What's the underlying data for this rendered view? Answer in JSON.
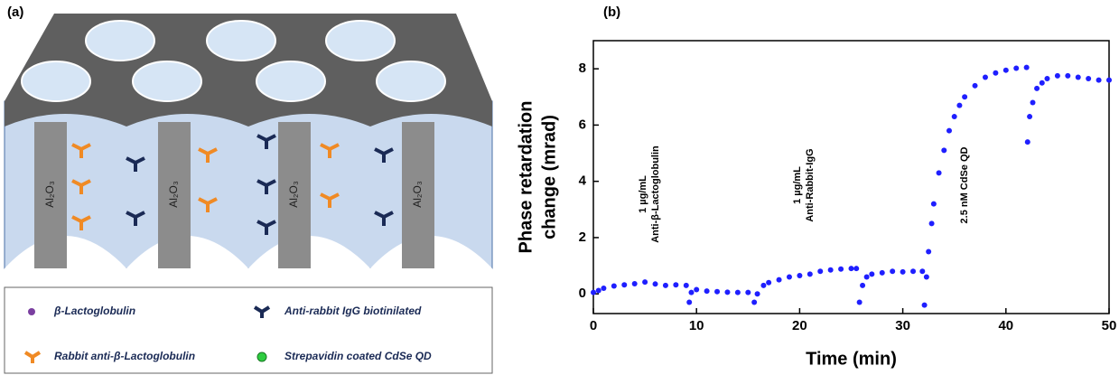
{
  "diagram": {
    "panel_label": "(a)",
    "pore_labels": [
      "Al₂O₃",
      "Al₂O₃",
      "Al₂O₃",
      "Al₂O₃"
    ],
    "legend": [
      "β-Lactoglobulin",
      "Anti-rabbit IgG biotinilated",
      "Rabbit anti-β-Lactoglobulin",
      "Strepavidin coated  CdSe QD"
    ]
  },
  "chart_data": {
    "type": "scatter",
    "panel_label": "(b)",
    "x_label": "Time (min)",
    "y_label": [
      "Phase retardation",
      "change (mrad)"
    ],
    "xlim": [
      0,
      50
    ],
    "xticks": [
      0,
      10,
      20,
      30,
      40,
      50
    ],
    "ylim": [
      -0.7,
      9
    ],
    "yticks": [
      0,
      2,
      4,
      6,
      8
    ],
    "annotations": [
      [
        "1 µg/mL",
        "Anti-β-Lactoglobulin"
      ],
      [
        "1 µg/mL",
        "Anti-Rabbit-IgG"
      ],
      [
        "2.5 nM CdSe QD"
      ]
    ],
    "series": [
      {
        "color": "#1f1fff",
        "x": [
          0,
          0.5,
          1,
          2,
          3,
          4,
          5,
          6,
          7,
          8,
          9,
          9.3,
          9.5,
          10,
          11,
          12,
          13,
          14,
          15,
          15.6,
          15.9,
          16.5,
          17,
          18,
          19,
          20,
          21,
          22,
          23,
          24,
          25,
          25.5,
          25.8,
          26.1,
          26.5,
          27,
          28,
          29,
          30,
          31,
          31.9,
          32.1,
          32.3,
          32.5,
          32.8,
          33,
          33.5,
          34,
          34.5,
          35,
          35.5,
          36,
          37,
          38,
          39,
          40,
          41,
          42,
          42.1,
          42.3,
          42.6,
          43,
          43.5,
          44,
          45,
          46,
          47,
          48,
          49,
          50
        ],
        "values": [
          0.05,
          0.12,
          0.2,
          0.28,
          0.32,
          0.36,
          0.42,
          0.35,
          0.3,
          0.32,
          0.3,
          -0.3,
          0.05,
          0.15,
          0.1,
          0.08,
          0.06,
          0.05,
          0.05,
          -0.3,
          0.0,
          0.3,
          0.4,
          0.5,
          0.6,
          0.65,
          0.7,
          0.8,
          0.85,
          0.88,
          0.9,
          0.9,
          -0.3,
          0.3,
          0.6,
          0.7,
          0.75,
          0.8,
          0.78,
          0.8,
          0.8,
          -0.4,
          0.6,
          1.5,
          2.5,
          3.2,
          4.3,
          5.1,
          5.8,
          6.3,
          6.7,
          7.0,
          7.4,
          7.7,
          7.85,
          7.95,
          8.02,
          8.05,
          5.4,
          6.3,
          6.8,
          7.3,
          7.5,
          7.65,
          7.75,
          7.75,
          7.7,
          7.65,
          7.6,
          7.6
        ]
      }
    ]
  }
}
